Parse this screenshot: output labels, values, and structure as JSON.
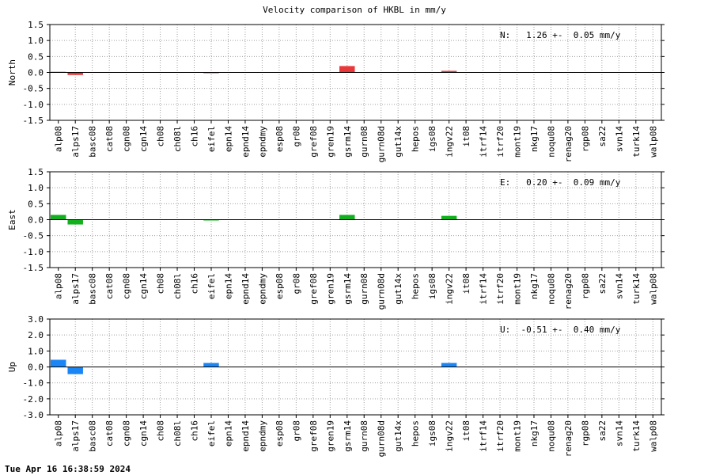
{
  "title": "Velocity comparison of HKBL in mm/y",
  "timestamp": "Tue Apr 16 16:38:59 2024",
  "chart_data": [
    {
      "type": "bar",
      "component": "north",
      "ylabel": "North",
      "ylim": [
        -1.5,
        1.5
      ],
      "yticks": [
        "1.5",
        "1.0",
        "0.5",
        "0.0",
        "-0.5",
        "-1.0",
        "-1.5"
      ],
      "grid": true,
      "annotation": "N:   1.26 +-  0.05 mm/y",
      "color": "#e8383a",
      "categories": [
        "alp08",
        "alps17",
        "basc08",
        "cat08",
        "cgn08",
        "cgn14",
        "ch08",
        "ch08l",
        "ch16",
        "eifel",
        "epn14",
        "epnd14",
        "epndmy",
        "esp08",
        "gr08",
        "gref08",
        "gren19",
        "gsrm14",
        "gurn08",
        "gurn08d",
        "gut14x",
        "hepos",
        "igs08",
        "ingv22",
        "it08",
        "itrf14",
        "itrf20",
        "mont19",
        "nkg17",
        "noqu08",
        "renag20",
        "rgp08",
        "sa22",
        "svn14",
        "turk14",
        "walp08"
      ],
      "values": [
        0.02,
        -0.08,
        0,
        0,
        0,
        0,
        0,
        0,
        0,
        -0.02,
        0,
        0,
        0,
        0,
        0,
        0,
        0,
        0.2,
        0,
        0,
        0,
        0,
        0,
        0.05,
        0,
        0,
        0,
        0,
        0,
        0,
        0,
        0,
        0,
        0,
        0,
        0
      ]
    },
    {
      "type": "bar",
      "component": "east",
      "ylabel": "East",
      "ylim": [
        -1.5,
        1.5
      ],
      "yticks": [
        "1.5",
        "1.0",
        "0.5",
        "0.0",
        "-0.5",
        "-1.0",
        "-1.5"
      ],
      "grid": true,
      "annotation": "E:   0.20 +-  0.09 mm/y",
      "color": "#12b01c",
      "categories": [
        "alp08",
        "alps17",
        "basc08",
        "cat08",
        "cgn08",
        "cgn14",
        "ch08",
        "ch08l",
        "ch16",
        "eifel",
        "epn14",
        "epnd14",
        "epndmy",
        "esp08",
        "gr08",
        "gref08",
        "gren19",
        "gsrm14",
        "gurn08",
        "gurn08d",
        "gut14x",
        "hepos",
        "igs08",
        "ingv22",
        "it08",
        "itrf14",
        "itrf20",
        "mont19",
        "nkg17",
        "noqu08",
        "renag20",
        "rgp08",
        "sa22",
        "svn14",
        "turk14",
        "walp08"
      ],
      "values": [
        0.15,
        -0.15,
        0,
        0,
        0,
        0,
        0,
        0,
        0,
        -0.02,
        0,
        0,
        0,
        0,
        0,
        0,
        0,
        0.15,
        0,
        0,
        0,
        0,
        0,
        0.12,
        0,
        0,
        0,
        0,
        0,
        0,
        0,
        0,
        0,
        0,
        0,
        0
      ]
    },
    {
      "type": "bar",
      "component": "up",
      "ylabel": "Up",
      "ylim": [
        -3.0,
        3.0
      ],
      "yticks": [
        "3.0",
        "2.0",
        "1.0",
        "0.0",
        "-1.0",
        "-2.0",
        "-3.0"
      ],
      "grid": true,
      "annotation": "U:  -0.51 +-  0.40 mm/y",
      "color": "#1a85f5",
      "categories": [
        "alp08",
        "alps17",
        "basc08",
        "cat08",
        "cgn08",
        "cgn14",
        "ch08",
        "ch08l",
        "ch16",
        "eifel",
        "epn14",
        "epnd14",
        "epndmy",
        "esp08",
        "gr08",
        "gref08",
        "gren19",
        "gsrm14",
        "gurn08",
        "gurn08d",
        "gut14x",
        "hepos",
        "igs08",
        "ingv22",
        "it08",
        "itrf14",
        "itrf20",
        "mont19",
        "nkg17",
        "noqu08",
        "renag20",
        "rgp08",
        "sa22",
        "svn14",
        "turk14",
        "walp08"
      ],
      "values": [
        0.45,
        -0.45,
        0,
        0,
        0,
        0,
        0,
        0,
        0,
        0.25,
        0,
        0,
        0,
        0,
        0,
        0,
        0,
        0,
        0,
        0,
        0,
        0,
        0,
        0.25,
        0,
        0,
        0,
        0,
        0,
        0,
        0,
        0,
        0,
        0,
        0,
        0
      ]
    }
  ]
}
